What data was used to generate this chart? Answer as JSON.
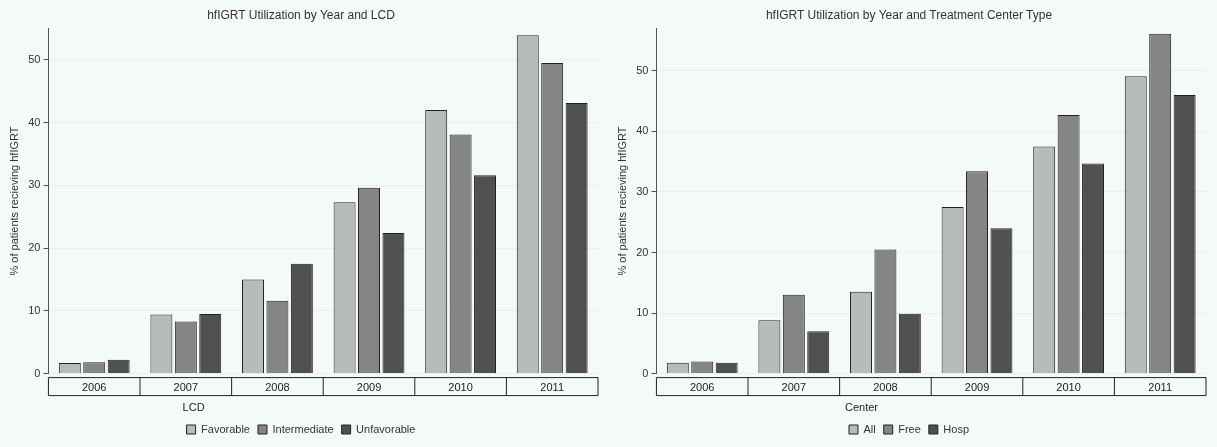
{
  "chart_data": [
    {
      "type": "bar",
      "title": "hfIGRT Utilization by Year and LCD",
      "ylabel": "% of patients recieving hfIGRT",
      "legend_title": "LCD",
      "categories": [
        "2006",
        "2007",
        "2008",
        "2009",
        "2010",
        "2011"
      ],
      "series": [
        {
          "name": "Favorable",
          "color": "#b8bcb8",
          "values": [
            1.7,
            9.4,
            15.0,
            27.3,
            42.0,
            53.9
          ]
        },
        {
          "name": "Intermediate",
          "color": "#858585",
          "values": [
            1.8,
            8.3,
            11.6,
            29.6,
            38.1,
            49.5
          ]
        },
        {
          "name": "Unfavorable",
          "color": "#505050",
          "values": [
            2.2,
            9.5,
            17.5,
            22.4,
            31.6,
            43.1
          ]
        }
      ],
      "ylim": [
        0,
        55
      ],
      "yticks": [
        0,
        10,
        20,
        30,
        40,
        50
      ],
      "grid": "y",
      "legend": "bottom"
    },
    {
      "type": "bar",
      "title": "hfIGRT Utilization by Year and Treatment Center Type",
      "ylabel": "% of patients recieving hfIGRT",
      "legend_title": "Center",
      "categories": [
        "2006",
        "2007",
        "2008",
        "2009",
        "2010",
        "2011"
      ],
      "series": [
        {
          "name": "All",
          "color": "#b8bcb8",
          "values": [
            1.8,
            8.8,
            13.5,
            27.5,
            37.5,
            49.1
          ]
        },
        {
          "name": "Free",
          "color": "#858585",
          "values": [
            2.0,
            13.0,
            20.5,
            33.4,
            42.7,
            56.1
          ]
        },
        {
          "name": "Hosp",
          "color": "#505050",
          "values": [
            1.8,
            7.0,
            9.9,
            24.0,
            34.7,
            46.0
          ]
        }
      ],
      "ylim": [
        0,
        57
      ],
      "yticks": [
        0,
        10,
        20,
        30,
        40,
        50
      ],
      "grid": "y",
      "legend": "bottom"
    }
  ]
}
